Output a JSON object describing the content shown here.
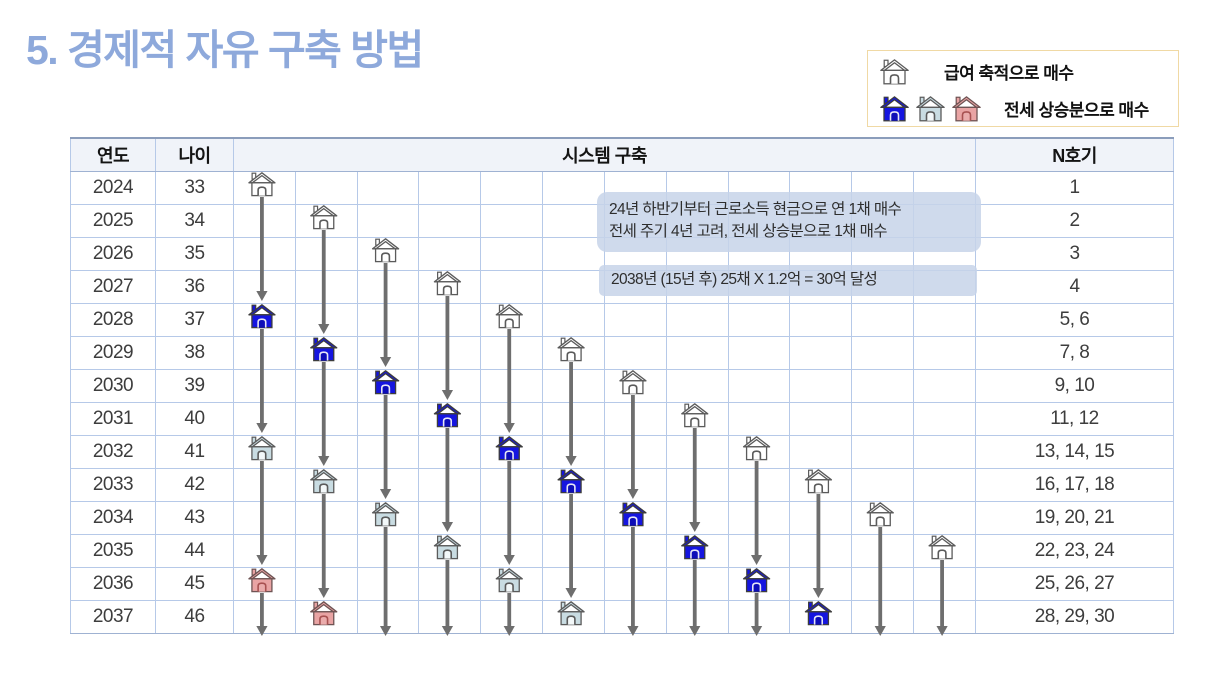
{
  "title": "5. 경제적 자유 구축 방법",
  "legend": {
    "rows": [
      {
        "icons": [
          "white"
        ],
        "label": "급여 축적으로 매수"
      },
      {
        "icons": [
          "blue",
          "light",
          "red"
        ],
        "label": "전세 상승분으로 매수"
      }
    ]
  },
  "table": {
    "headers": {
      "year": "연도",
      "age": "나이",
      "system": "시스템 구축",
      "unit": "N호기"
    },
    "rows": [
      {
        "year": "2024",
        "age": "33",
        "units": "1"
      },
      {
        "year": "2025",
        "age": "34",
        "units": "2"
      },
      {
        "year": "2026",
        "age": "35",
        "units": "3"
      },
      {
        "year": "2027",
        "age": "36",
        "units": "4"
      },
      {
        "year": "2028",
        "age": "37",
        "units": "5, 6"
      },
      {
        "year": "2029",
        "age": "38",
        "units": "7, 8"
      },
      {
        "year": "2030",
        "age": "39",
        "units": "9, 10"
      },
      {
        "year": "2031",
        "age": "40",
        "units": "11, 12"
      },
      {
        "year": "2032",
        "age": "41",
        "units": "13, 14, 15"
      },
      {
        "year": "2033",
        "age": "42",
        "units": "16, 17, 18"
      },
      {
        "year": "2034",
        "age": "43",
        "units": "19, 20, 21"
      },
      {
        "year": "2035",
        "age": "44",
        "units": "22, 23, 24"
      },
      {
        "year": "2036",
        "age": "45",
        "units": "25, 26, 27"
      },
      {
        "year": "2037",
        "age": "46",
        "units": "28, 29, 30"
      }
    ]
  },
  "grid": {
    "cols": 12,
    "start_year": 2024,
    "end_year": 2037
  },
  "houses": [
    {
      "col": 1,
      "year": 2024,
      "type": "white"
    },
    {
      "col": 2,
      "year": 2025,
      "type": "white"
    },
    {
      "col": 3,
      "year": 2026,
      "type": "white"
    },
    {
      "col": 4,
      "year": 2027,
      "type": "white"
    },
    {
      "col": 5,
      "year": 2028,
      "type": "white"
    },
    {
      "col": 6,
      "year": 2029,
      "type": "white"
    },
    {
      "col": 7,
      "year": 2030,
      "type": "white"
    },
    {
      "col": 8,
      "year": 2031,
      "type": "white"
    },
    {
      "col": 9,
      "year": 2032,
      "type": "white"
    },
    {
      "col": 10,
      "year": 2033,
      "type": "white"
    },
    {
      "col": 11,
      "year": 2034,
      "type": "white"
    },
    {
      "col": 12,
      "year": 2035,
      "type": "white"
    },
    {
      "col": 1,
      "year": 2028,
      "type": "blue"
    },
    {
      "col": 2,
      "year": 2029,
      "type": "blue"
    },
    {
      "col": 3,
      "year": 2030,
      "type": "blue"
    },
    {
      "col": 4,
      "year": 2031,
      "type": "blue"
    },
    {
      "col": 5,
      "year": 2032,
      "type": "blue"
    },
    {
      "col": 6,
      "year": 2033,
      "type": "blue"
    },
    {
      "col": 7,
      "year": 2034,
      "type": "blue"
    },
    {
      "col": 8,
      "year": 2035,
      "type": "blue"
    },
    {
      "col": 9,
      "year": 2036,
      "type": "blue"
    },
    {
      "col": 10,
      "year": 2037,
      "type": "blue"
    },
    {
      "col": 1,
      "year": 2032,
      "type": "light"
    },
    {
      "col": 2,
      "year": 2033,
      "type": "light"
    },
    {
      "col": 3,
      "year": 2034,
      "type": "light"
    },
    {
      "col": 4,
      "year": 2035,
      "type": "light"
    },
    {
      "col": 5,
      "year": 2036,
      "type": "light"
    },
    {
      "col": 6,
      "year": 2037,
      "type": "light"
    },
    {
      "col": 1,
      "year": 2036,
      "type": "red"
    },
    {
      "col": 2,
      "year": 2037,
      "type": "red"
    }
  ],
  "house_colors": {
    "white": {
      "roof": "#ffffff",
      "body": "#ffffff",
      "door": "#ffffff",
      "stroke": "#5b5b5b",
      "doorStroke": "#5b5b5b"
    },
    "blue": {
      "roof": "#1515e0",
      "body": "#1515e0",
      "door": "#0d0db8",
      "stroke": "#3d3d3d",
      "doorStroke": "#e6e6f5"
    },
    "light": {
      "roof": "#c9dce2",
      "body": "#c9dce2",
      "door": "#f3f8f9",
      "stroke": "#5b5b5b",
      "doorStroke": "#5b5b5b"
    },
    "red": {
      "roof": "#e9a4a4",
      "body": "#e9a4a4",
      "door": "#eaacac",
      "stroke": "#6e5454",
      "doorStroke": "#a85252"
    }
  },
  "arrow_color": "#6e6e6e",
  "accent_colors": {
    "title": "#8EA9DB",
    "table_border": "#B6C9E8",
    "legend_border": "#F0D9A4",
    "callout_bg": "#C7D3E9"
  },
  "callouts": [
    {
      "lines": [
        "24년 하반기부터 근로소득 현금으로 연 1채 매수",
        "전세 주기 4년 고려, 전세 상승분으로 1채 매수"
      ]
    },
    {
      "lines": [
        "2038년 (15년  후) 25채 X 1.2억 = 30억 달성"
      ]
    }
  ]
}
